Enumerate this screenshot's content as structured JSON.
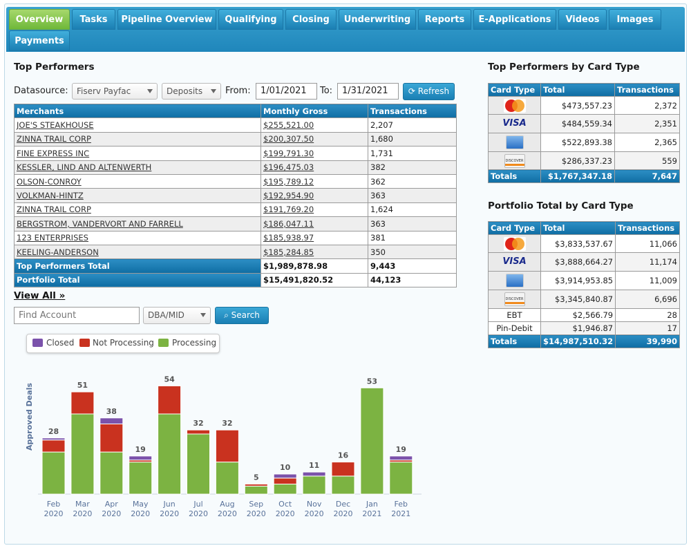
{
  "tabs": [
    {
      "label": "Overview",
      "active": true
    },
    {
      "label": "Tasks"
    },
    {
      "label": "Pipeline Overview"
    },
    {
      "label": "Qualifying"
    },
    {
      "label": "Closing"
    },
    {
      "label": "Underwriting"
    },
    {
      "label": "Reports"
    },
    {
      "label": "E-Applications"
    },
    {
      "label": "Videos"
    },
    {
      "label": "Images"
    },
    {
      "label": "Payments"
    }
  ],
  "top_performers": {
    "title": "Top Performers",
    "datasource_label": "Datasource:",
    "datasource_value": "Fiserv Payfac",
    "type_value": "Deposits",
    "from_label": "From:",
    "from_value": "1/01/2021",
    "to_label": "To:",
    "to_value": "1/31/2021",
    "refresh_label": "Refresh",
    "columns": [
      "Merchants",
      "Monthly Gross",
      "Transactions"
    ],
    "rows": [
      [
        "JOE'S STEAKHOUSE",
        "$255,521.00",
        "2,207"
      ],
      [
        "ZINNA TRAIL CORP",
        "$200,307.50",
        "1,680"
      ],
      [
        "FINE EXPRESS INC",
        "$199,791.30",
        "1,731"
      ],
      [
        "KESSLER, LIND AND ALTENWERTH",
        "$196,475.03",
        "382"
      ],
      [
        "OLSON-CONROY",
        "$195,789.12",
        "362"
      ],
      [
        "VOLKMAN-HINTZ",
        "$192,954.90",
        "363"
      ],
      [
        "ZINNA TRAIL CORP",
        "$191,769.20",
        "1,624"
      ],
      [
        "BERGSTROM, VANDERVORT AND FARRELL",
        "$186,047.11",
        "363"
      ],
      [
        "123 ENTERPRISES",
        "$185,938.97",
        "381"
      ],
      [
        "KEELING-ANDERSON",
        "$185,284.85",
        "350"
      ]
    ],
    "totals": [
      [
        "Top Performers Total",
        "$1,989,878.98",
        "9,443"
      ],
      [
        "Portfolio Total",
        "$15,491,820.52",
        "44,123"
      ]
    ],
    "view_all": "View All »"
  },
  "search": {
    "placeholder": "Find Account",
    "mode_value": "DBA/MID",
    "button_label": "Search"
  },
  "chart_data": {
    "type": "bar",
    "stacked": true,
    "ylabel": "Approved Deals",
    "categories": [
      "Feb 2020",
      "Mar 2020",
      "Apr 2020",
      "May 2020",
      "Jun 2020",
      "Jul 2020",
      "Aug 2020",
      "Sep 2020",
      "Oct 2020",
      "Nov 2020",
      "Dec 2020",
      "Jan 2021",
      "Feb 2021"
    ],
    "totals": [
      28,
      51,
      38,
      19,
      54,
      32,
      32,
      5,
      10,
      11,
      16,
      53,
      19
    ],
    "series": [
      {
        "name": "Closed",
        "color": "#7b52ab",
        "values": [
          1,
          0,
          3,
          2,
          0,
          0,
          0,
          0,
          2,
          2,
          0,
          0,
          2
        ]
      },
      {
        "name": "Not Processing",
        "color": "#c9321f",
        "values": [
          6,
          11,
          14,
          1,
          14,
          2,
          16,
          1,
          3,
          0,
          7,
          0,
          1
        ]
      },
      {
        "name": "Processing",
        "color": "#7cb342",
        "values": [
          21,
          40,
          21,
          16,
          40,
          30,
          16,
          4,
          5,
          9,
          9,
          53,
          16
        ]
      }
    ],
    "ylim": [
      0,
      60
    ]
  },
  "card_type": {
    "title": "Top Performers by Card Type",
    "columns": [
      "Card Type",
      "Total",
      "Transactions"
    ],
    "rows": [
      {
        "card": "mastercard-icon",
        "total": "$473,557.23",
        "tx": "2,372"
      },
      {
        "card": "visa-icon",
        "label": "VISA",
        "total": "$484,559.34",
        "tx": "2,351"
      },
      {
        "card": "amex-icon",
        "total": "$522,893.38",
        "tx": "2,365"
      },
      {
        "card": "discover-icon",
        "label": "DISCOVER",
        "total": "$286,337.23",
        "tx": "559"
      }
    ],
    "totals": {
      "label": "Totals",
      "total": "$1,767,347.18",
      "tx": "7,647"
    }
  },
  "portfolio_card": {
    "title": "Portfolio Total by Card Type",
    "columns": [
      "Card Type",
      "Total",
      "Transactions"
    ],
    "rows": [
      {
        "card": "mastercard-icon",
        "total": "$3,833,537.67",
        "tx": "11,066"
      },
      {
        "card": "visa-icon",
        "label": "VISA",
        "total": "$3,888,664.27",
        "tx": "11,174"
      },
      {
        "card": "amex-icon",
        "total": "$3,914,953.85",
        "tx": "11,009"
      },
      {
        "card": "discover-icon",
        "label": "DISCOVER",
        "total": "$3,345,840.87",
        "tx": "6,696"
      },
      {
        "text": "EBT",
        "total": "$2,566.79",
        "tx": "28"
      },
      {
        "text": "Pin-Debit",
        "total": "$1,946.87",
        "tx": "17"
      }
    ],
    "totals": {
      "label": "Totals",
      "total": "$14,987,510.32",
      "tx": "39,990"
    }
  }
}
